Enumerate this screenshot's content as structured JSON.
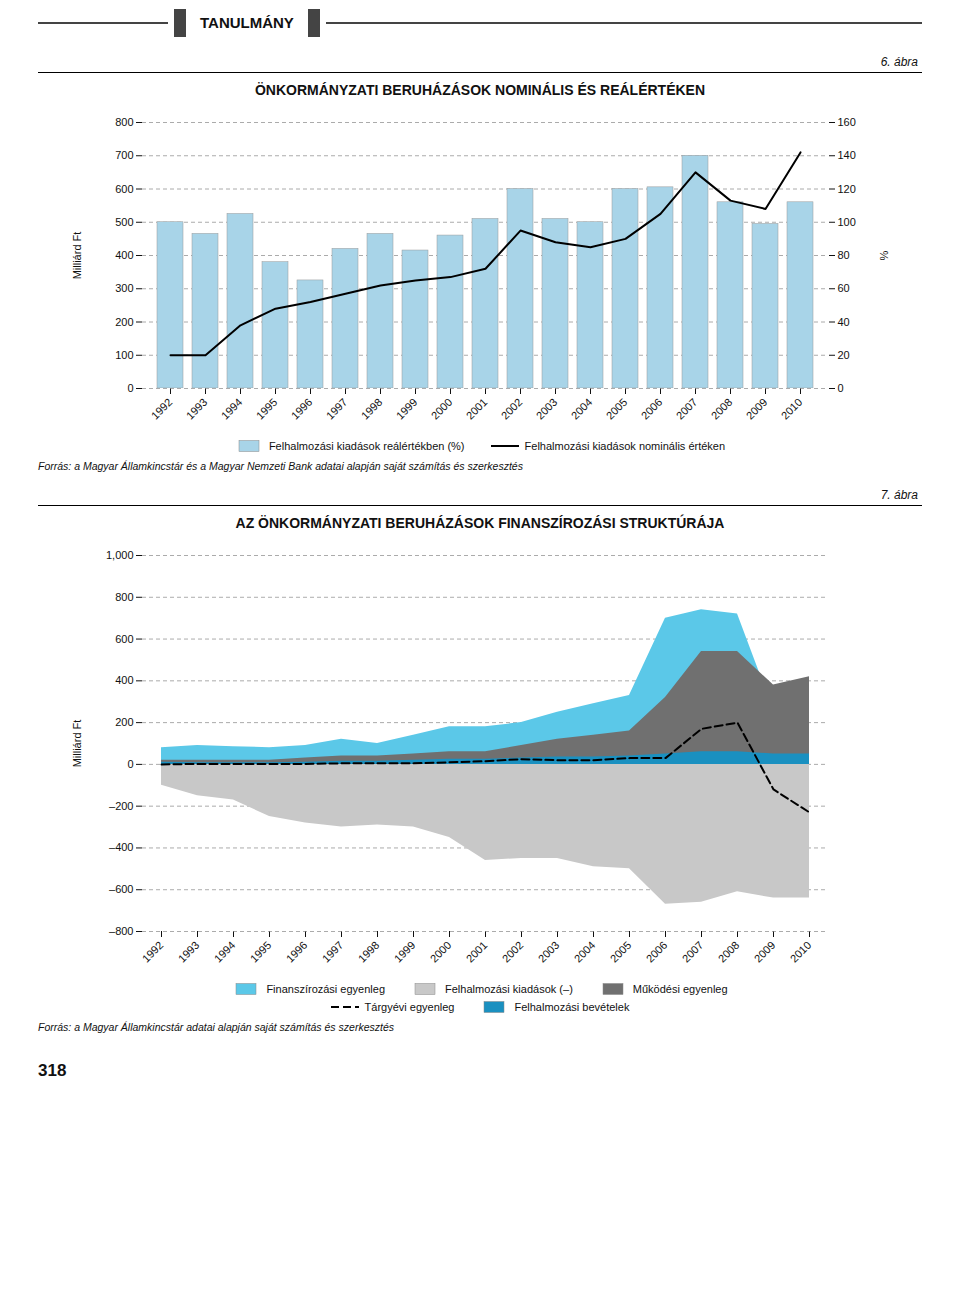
{
  "annotations": [
    "TANULMÁNY",
    "318"
  ],
  "chart_data": [
    {
      "type": "bar",
      "title": "ÖNKORMÁNYZATI BERUHÁZÁSOK NOMINÁLIS ÉS REÁLÉRTÉKEN",
      "annotations": [
        "6. ábra",
        "Forrás: a Magyar Államkincstár és a Magyar Nemzeti Bank adatai alapján saját számítás és szerkesztés"
      ],
      "categories": [
        "1992",
        "1993",
        "1994",
        "1995",
        "1996",
        "1997",
        "1998",
        "1999",
        "2000",
        "2001",
        "2002",
        "2003",
        "2004",
        "2005",
        "2006",
        "2007",
        "2008",
        "2009",
        "2010"
      ],
      "series": [
        {
          "name": "Felhalmozási kiadások reálértékben (%)",
          "type": "bar",
          "color": "#a8d4e8",
          "values": [
            500,
            465,
            525,
            380,
            325,
            420,
            465,
            415,
            460,
            510,
            600,
            510,
            500,
            600,
            605,
            700,
            560,
            495,
            560
          ]
        },
        {
          "name": "Felhalmozási kiadások nominális értéken",
          "type": "line",
          "color": "#000000",
          "axis": "y2",
          "values": [
            20,
            20,
            38,
            48,
            52,
            57,
            62,
            65,
            67,
            72,
            95,
            88,
            85,
            90,
            105,
            130,
            113,
            108,
            142
          ]
        }
      ],
      "ylabel": "Milliárd Ft",
      "y2label": "%",
      "ylim": [
        0,
        800
      ],
      "yticks": [
        0,
        100,
        200,
        300,
        400,
        500,
        600,
        700,
        800
      ],
      "y2lim": [
        0,
        160
      ],
      "y2ticks": [
        0,
        20,
        40,
        60,
        80,
        100,
        120,
        140,
        160
      ],
      "grid": true,
      "legend": "bottom"
    },
    {
      "type": "area",
      "title": "AZ ÖNKORMÁNYZATI BERUHÁZÁSOK FINANSZÍROZÁSI STRUKTÚRÁJA",
      "annotations": [
        "7. ábra",
        "Forrás: a Magyar Államkincstár adatai alapján saját számítás és szerkesztés"
      ],
      "categories": [
        "1992",
        "1993",
        "1994",
        "1995",
        "1996",
        "1997",
        "1998",
        "1999",
        "2000",
        "2001",
        "2002",
        "2003",
        "2004",
        "2005",
        "2006",
        "2007",
        "2008",
        "2009",
        "2010"
      ],
      "series": [
        {
          "name": "Finanszírozási egyenleg",
          "color": "#5bc8e8",
          "values": [
            80,
            90,
            85,
            80,
            90,
            120,
            100,
            140,
            180,
            180,
            200,
            250,
            290,
            330,
            700,
            740,
            720,
            260,
            340
          ]
        },
        {
          "name": "Felhalmozási kiadások (–)",
          "color": "#c8c8c8",
          "values": [
            -100,
            -150,
            -170,
            -250,
            -280,
            -300,
            -290,
            -300,
            -350,
            -460,
            -450,
            -450,
            -490,
            -500,
            -670,
            -660,
            -610,
            -640,
            -640
          ]
        },
        {
          "name": "Működési egyenleg",
          "color": "#707070",
          "values": [
            20,
            20,
            20,
            20,
            30,
            40,
            40,
            50,
            60,
            60,
            90,
            120,
            140,
            160,
            320,
            540,
            540,
            380,
            420
          ]
        },
        {
          "name": "Tárgyévi egyenleg",
          "type": "line",
          "line_style": "dashed",
          "color": "#000000",
          "values": [
            0,
            2,
            2,
            2,
            2,
            5,
            5,
            5,
            10,
            15,
            25,
            20,
            20,
            30,
            30,
            170,
            200,
            -120,
            -230
          ]
        },
        {
          "name": "Felhalmozási bevételek",
          "color": "#1a90c0",
          "values": [
            10,
            8,
            8,
            8,
            10,
            15,
            15,
            20,
            25,
            25,
            30,
            35,
            35,
            40,
            50,
            60,
            60,
            50,
            50
          ]
        }
      ],
      "ylabel": "Milliárd Ft",
      "ylim": [
        -800,
        1000
      ],
      "yticks": [
        {
          "value": -800,
          "label": "–800"
        },
        {
          "value": -600,
          "label": "–600"
        },
        {
          "value": -400,
          "label": "–400"
        },
        {
          "value": -200,
          "label": "–200"
        },
        0,
        200,
        400,
        600,
        800,
        {
          "value": 1000,
          "label": "1,000"
        }
      ],
      "grid": true,
      "legend": "bottom"
    }
  ]
}
